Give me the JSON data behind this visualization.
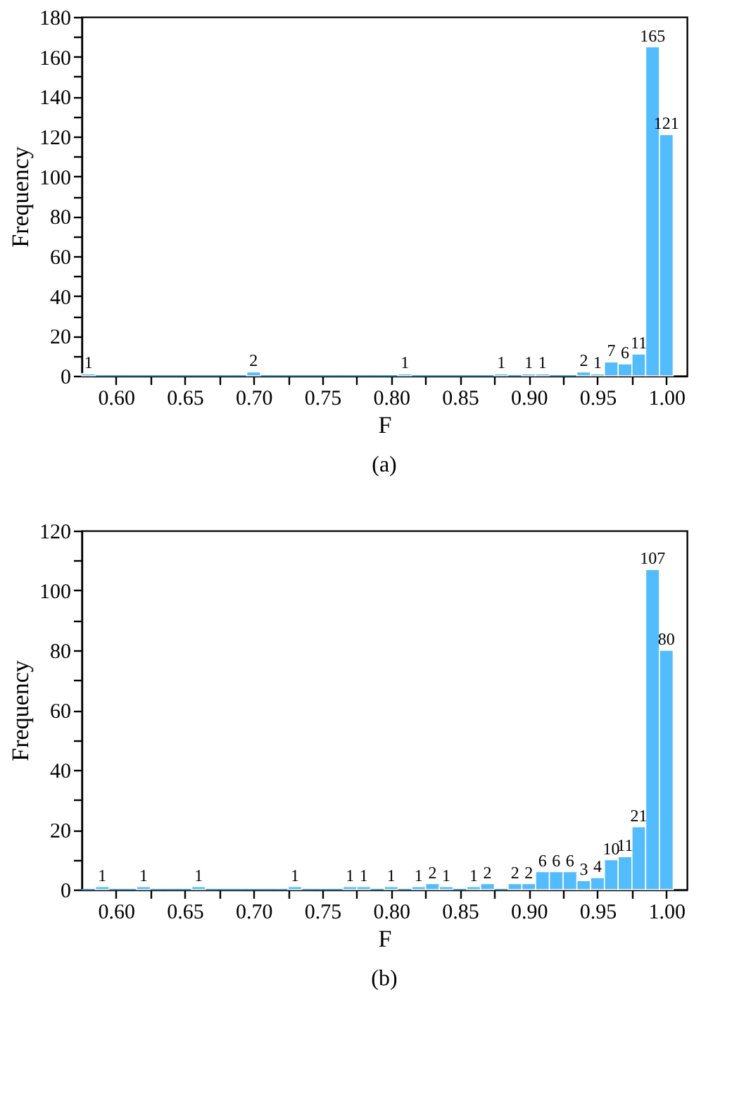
{
  "chart_data": [
    {
      "type": "histogram",
      "title": "(a)",
      "xlabel": "F",
      "ylabel": "Frequency",
      "color": "#52bcfc",
      "grid": false,
      "bins": [
        0.575,
        0.585,
        0.595,
        0.605,
        0.615,
        0.625,
        0.635,
        0.645,
        0.655,
        0.665,
        0.675,
        0.685,
        0.695,
        0.705,
        0.715,
        0.725,
        0.735,
        0.745,
        0.755,
        0.765,
        0.775,
        0.785,
        0.795,
        0.805,
        0.815,
        0.825,
        0.835,
        0.845,
        0.855,
        0.865,
        0.875,
        0.885,
        0.895,
        0.905,
        0.915,
        0.925,
        0.935,
        0.945,
        0.955,
        0.965,
        0.975,
        0.985,
        0.995,
        1.005
      ],
      "values": [
        1,
        0,
        0,
        0,
        0,
        0,
        0,
        0,
        0,
        0,
        0,
        0,
        2,
        0,
        0,
        0,
        0,
        0,
        0,
        0,
        0,
        0,
        0,
        1,
        0,
        0,
        0,
        0,
        0,
        0,
        1,
        0,
        1,
        1,
        0,
        0,
        2,
        1,
        7,
        6,
        11,
        165,
        121
      ],
      "value_labels": [
        "1",
        null,
        null,
        null,
        null,
        null,
        null,
        null,
        null,
        null,
        null,
        null,
        "2",
        null,
        null,
        null,
        null,
        null,
        null,
        null,
        null,
        null,
        null,
        "1",
        null,
        null,
        null,
        null,
        null,
        null,
        "1",
        null,
        "1",
        "1",
        null,
        null,
        "2",
        "1",
        "7",
        "6",
        "11",
        "165",
        "121"
      ],
      "xlim": [
        0.575,
        1.015
      ],
      "ylim": [
        0,
        180
      ],
      "xticks": [
        {
          "value": 0.6,
          "label": "0.60"
        },
        {
          "value": 0.625,
          "label": null
        },
        0.65,
        {
          "value": 0.675,
          "label": null
        },
        {
          "value": 0.7,
          "label": "0.70"
        },
        {
          "value": 0.725,
          "label": null
        },
        0.75,
        {
          "value": 0.775,
          "label": null
        },
        {
          "value": 0.8,
          "label": "0.80"
        },
        {
          "value": 0.825,
          "label": null
        },
        0.85,
        {
          "value": 0.875,
          "label": null
        },
        {
          "value": 0.9,
          "label": "0.90"
        },
        {
          "value": 0.925,
          "label": null
        },
        0.95,
        {
          "value": 0.975,
          "label": null
        },
        {
          "value": 1.0,
          "label": "1.00"
        }
      ],
      "yticks": [
        0,
        {
          "value": 10,
          "label": null
        },
        20,
        {
          "value": 30,
          "label": null
        },
        40,
        {
          "value": 50,
          "label": null
        },
        60,
        {
          "value": 70,
          "label": null
        },
        80,
        {
          "value": 90,
          "label": null
        },
        100,
        {
          "value": 110,
          "label": null
        },
        120,
        {
          "value": 130,
          "label": null
        },
        140,
        {
          "value": 150,
          "label": null
        },
        160,
        {
          "value": 170,
          "label": null
        },
        180
      ]
    },
    {
      "type": "histogram",
      "title": "(b)",
      "xlabel": "F",
      "ylabel": "Frequency",
      "color": "#52bcfc",
      "grid": false,
      "bins": [
        0.575,
        0.585,
        0.595,
        0.605,
        0.615,
        0.625,
        0.635,
        0.645,
        0.655,
        0.665,
        0.675,
        0.685,
        0.695,
        0.705,
        0.715,
        0.725,
        0.735,
        0.745,
        0.755,
        0.765,
        0.775,
        0.785,
        0.795,
        0.805,
        0.815,
        0.825,
        0.835,
        0.845,
        0.855,
        0.865,
        0.875,
        0.885,
        0.895,
        0.905,
        0.915,
        0.925,
        0.935,
        0.945,
        0.955,
        0.965,
        0.975,
        0.985,
        0.995,
        1.005
      ],
      "values": [
        0,
        1,
        0,
        0,
        1,
        0,
        0,
        0,
        1,
        0,
        0,
        0,
        0,
        0,
        0,
        1,
        0,
        0,
        0,
        1,
        1,
        0,
        1,
        0,
        1,
        2,
        1,
        0,
        1,
        2,
        0,
        2,
        2,
        6,
        6,
        6,
        3,
        4,
        10,
        11,
        21,
        107,
        80
      ],
      "value_labels": [
        null,
        "1",
        null,
        null,
        "1",
        null,
        null,
        null,
        "1",
        null,
        null,
        null,
        null,
        null,
        null,
        "1",
        null,
        null,
        null,
        "1",
        "1",
        null,
        "1",
        null,
        "1",
        "2",
        "1",
        null,
        "1",
        "2",
        null,
        "2",
        "2",
        "6",
        "6",
        "6",
        "3",
        "4",
        "10",
        "11",
        "21",
        "107",
        "80"
      ],
      "xlim": [
        0.575,
        1.015
      ],
      "ylim": [
        0,
        120
      ],
      "xticks": [
        {
          "value": 0.6,
          "label": "0.60"
        },
        {
          "value": 0.625,
          "label": null
        },
        0.65,
        {
          "value": 0.675,
          "label": null
        },
        {
          "value": 0.7,
          "label": "0.70"
        },
        {
          "value": 0.725,
          "label": null
        },
        0.75,
        {
          "value": 0.775,
          "label": null
        },
        {
          "value": 0.8,
          "label": "0.80"
        },
        {
          "value": 0.825,
          "label": null
        },
        0.85,
        {
          "value": 0.875,
          "label": null
        },
        {
          "value": 0.9,
          "label": "0.90"
        },
        {
          "value": 0.925,
          "label": null
        },
        0.95,
        {
          "value": 0.975,
          "label": null
        },
        {
          "value": 1.0,
          "label": "1.00"
        }
      ],
      "yticks": [
        0,
        {
          "value": 10,
          "label": null
        },
        20,
        {
          "value": 30,
          "label": null
        },
        40,
        {
          "value": 50,
          "label": null
        },
        60,
        {
          "value": 70,
          "label": null
        },
        80,
        {
          "value": 90,
          "label": null
        },
        100,
        {
          "value": 110,
          "label": null
        },
        120
      ]
    }
  ]
}
